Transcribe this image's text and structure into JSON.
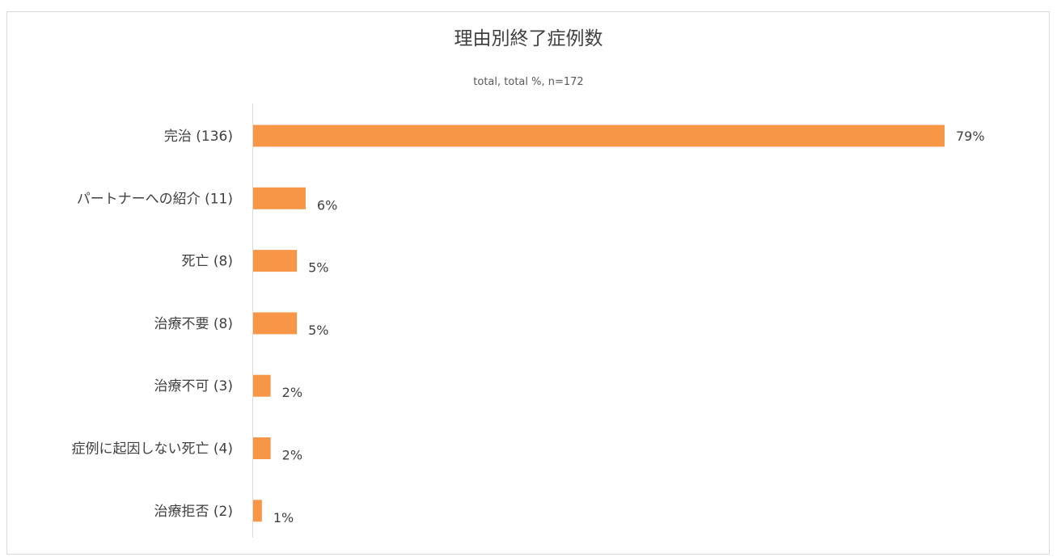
{
  "chart_data": {
    "type": "bar",
    "orientation": "horizontal",
    "title": "理由別終了症例数",
    "subtitle": "total, total %, n=172",
    "categories": [
      "完治 (136)",
      "パートナーへの紹介 (11)",
      "死亡 (8)",
      "治療不要 (8)",
      "治療不可 (3)",
      "症例に起因しない死亡 (4)",
      "治療拒否 (2)"
    ],
    "values": [
      79,
      6,
      5,
      5,
      2,
      2,
      1
    ],
    "data_labels": [
      "79%",
      "6%",
      "5%",
      "5%",
      "2%",
      "2%",
      "1%"
    ],
    "xlim": [
      0,
      100
    ],
    "grid": false,
    "legend": "none",
    "bar_color": "#f79646"
  }
}
